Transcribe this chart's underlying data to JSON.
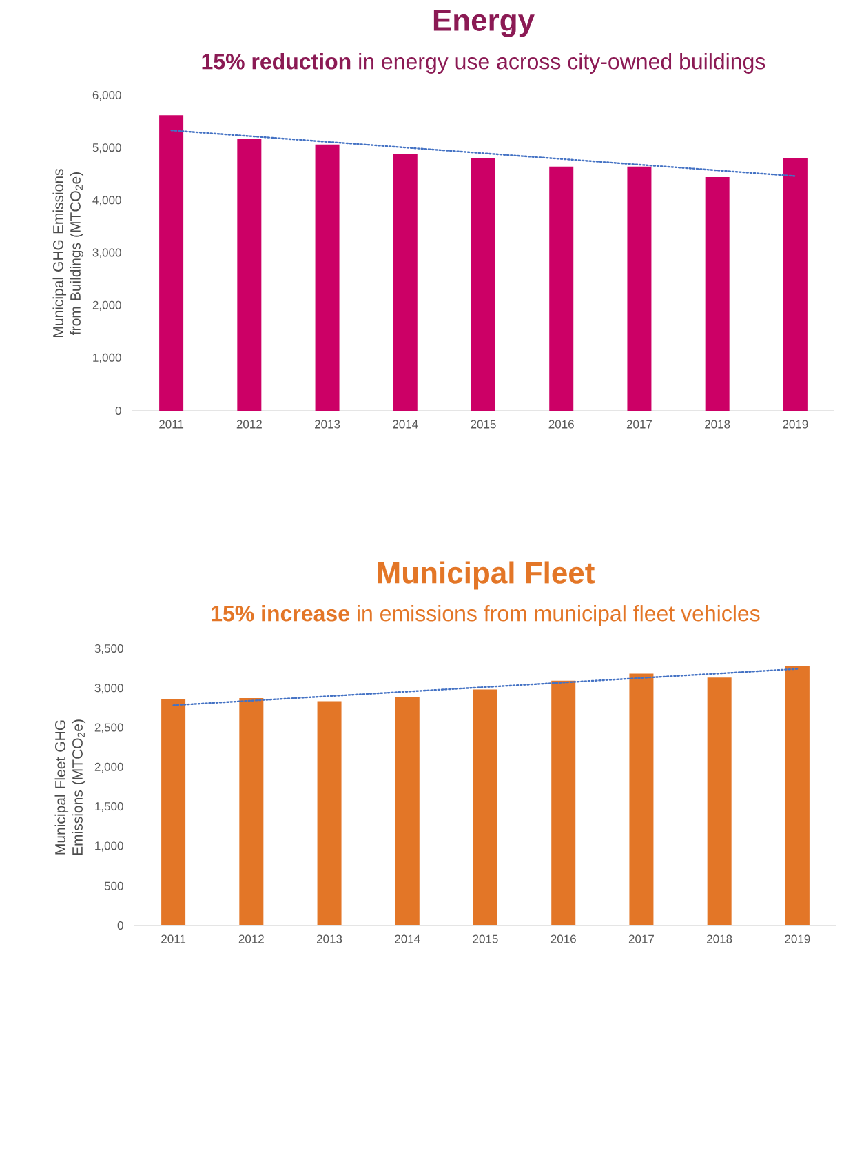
{
  "chart_data": [
    {
      "type": "bar",
      "title": "Energy",
      "subtitle": "**15% reduction** in energy use across city-owned buildings",
      "ylabel": "Municipal GHG Emissions from Buildings  (MTCO$_{2}$e)",
      "categories": [
        "2011",
        "2012",
        "2013",
        "2014",
        "2015",
        "2016",
        "2017",
        "2018",
        "2019"
      ],
      "series": [
        {
          "type": "bar",
          "color": "#cc0066",
          "values": [
            5630,
            5180,
            5070,
            4890,
            4810,
            4650,
            4650,
            4450,
            4810
          ]
        },
        {
          "type": "line",
          "color": "#4472c4",
          "line_style": "dotted",
          "values": [
            5340,
            null,
            null,
            null,
            null,
            null,
            null,
            null,
            4470
          ]
        }
      ],
      "ylim": [
        0,
        6000
      ],
      "yticks": [
        0,
        {
          "value": 1000,
          "label": "1,000"
        },
        {
          "value": 2000,
          "label": "2,000"
        },
        {
          "value": 3000,
          "label": "3,000"
        },
        {
          "value": 4000,
          "label": "4,000"
        },
        {
          "value": 5000,
          "label": "5,000"
        },
        {
          "value": 6000,
          "label": "6,000"
        }
      ]
    },
    {
      "type": "bar",
      "title": "Municipal Fleet",
      "subtitle": "**15% increase** in emissions from municipal fleet vehicles",
      "ylabel": "Municipal Fleet GHG Emissions (MTCO$_{2}$e)",
      "categories": [
        "2011",
        "2012",
        "2013",
        "2014",
        "2015",
        "2016",
        "2017",
        "2018",
        "2019"
      ],
      "series": [
        {
          "type": "bar",
          "color": "#e37627",
          "values": [
            2870,
            2880,
            2840,
            2890,
            2990,
            3100,
            3190,
            3140,
            3290
          ]
        },
        {
          "type": "line",
          "color": "#4472c4",
          "line_style": "dotted",
          "values": [
            2790,
            null,
            null,
            null,
            null,
            null,
            null,
            null,
            3250
          ]
        }
      ],
      "ylim": [
        0,
        3500
      ],
      "yticks": [
        0,
        500,
        {
          "value": 1000,
          "label": "1,000"
        },
        {
          "value": 1500,
          "label": "1,500"
        },
        {
          "value": 2000,
          "label": "2,000"
        },
        {
          "value": 2500,
          "label": "2,500"
        },
        {
          "value": 3000,
          "label": "3,000"
        },
        {
          "value": 3500,
          "label": "3,500"
        }
      ]
    }
  ]
}
